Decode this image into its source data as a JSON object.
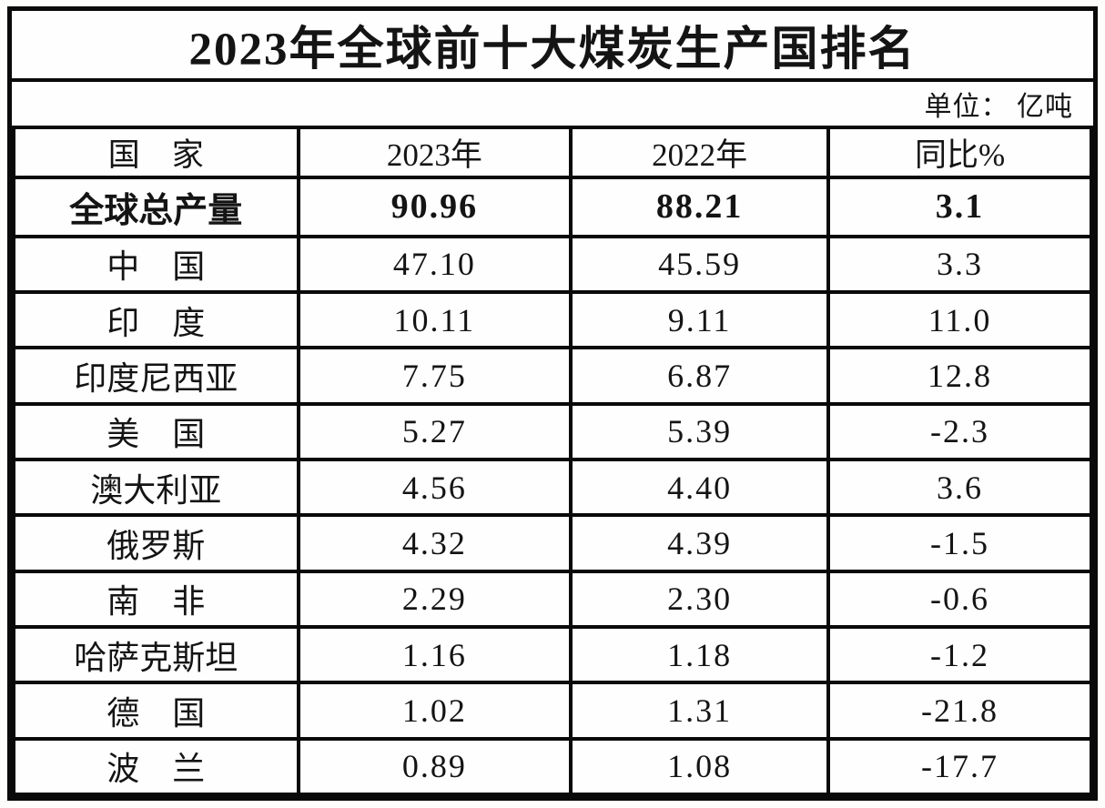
{
  "chart_data": {
    "type": "table",
    "title": "2023年全球前十大煤炭生产国排名",
    "unit_note": "单位： 亿吨",
    "columns": [
      "国　家",
      "2023年",
      "2022年",
      "同比%"
    ],
    "rows": [
      {
        "country": "全球总产量",
        "y2023": "90.96",
        "y2022": "88.21",
        "yoy": "3.1",
        "emphasis": true
      },
      {
        "country": "中　国",
        "y2023": "47.10",
        "y2022": "45.59",
        "yoy": "3.3",
        "emphasis": false
      },
      {
        "country": "印　度",
        "y2023": "10.11",
        "y2022": "9.11",
        "yoy": "11.0",
        "emphasis": false
      },
      {
        "country": "印度尼西亚",
        "y2023": "7.75",
        "y2022": "6.87",
        "yoy": "12.8",
        "emphasis": false
      },
      {
        "country": "美　国",
        "y2023": "5.27",
        "y2022": "5.39",
        "yoy": "-2.3",
        "emphasis": false
      },
      {
        "country": "澳大利亚",
        "y2023": "4.56",
        "y2022": "4.40",
        "yoy": "3.6",
        "emphasis": false
      },
      {
        "country": "俄罗斯",
        "y2023": "4.32",
        "y2022": "4.39",
        "yoy": "-1.5",
        "emphasis": false
      },
      {
        "country": "南　非",
        "y2023": "2.29",
        "y2022": "2.30",
        "yoy": "-0.6",
        "emphasis": false
      },
      {
        "country": "哈萨克斯坦",
        "y2023": "1.16",
        "y2022": "1.18",
        "yoy": "-1.2",
        "emphasis": false
      },
      {
        "country": "德　国",
        "y2023": "1.02",
        "y2022": "1.31",
        "yoy": "-21.8",
        "emphasis": false
      },
      {
        "country": "波　兰",
        "y2023": "0.89",
        "y2022": "1.08",
        "yoy": "-17.7",
        "emphasis": false
      }
    ],
    "layout": {
      "legend": "none",
      "grid": "full-borders"
    },
    "colors": {
      "border": "#0a0a0a",
      "text": "#141414",
      "background": "#fefefe"
    }
  }
}
